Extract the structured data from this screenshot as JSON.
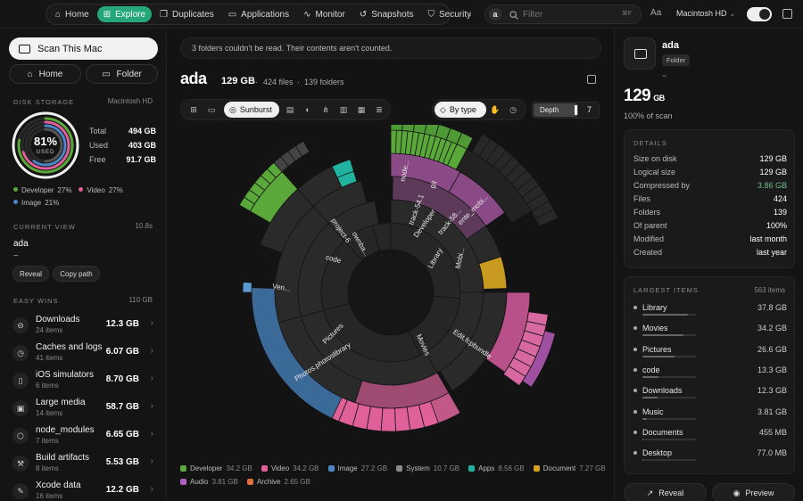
{
  "nav": {
    "tabs": [
      {
        "label": "Home",
        "icon": "home-icon"
      },
      {
        "label": "Explore",
        "icon": "compass-icon",
        "active": true
      },
      {
        "label": "Duplicates",
        "icon": "copy-icon"
      },
      {
        "label": "Applications",
        "icon": "monitor-icon"
      },
      {
        "label": "Monitor",
        "icon": "pulse-icon"
      },
      {
        "label": "Snapshots",
        "icon": "history-icon"
      },
      {
        "label": "Security",
        "icon": "shield-icon"
      }
    ],
    "search_chip": "a",
    "search_placeholder": "Filter",
    "search_shortcut": "⌘F",
    "volume": "Macintosh HD"
  },
  "left": {
    "scan_label": "Scan This Mac",
    "home_label": "Home",
    "folder_label": "Folder",
    "disk_storage_label": "DISK STORAGE",
    "disk_name": "Macintosh HD",
    "used_percent": "81%",
    "used_label": "USED",
    "used_fraction": 0.81,
    "stats": [
      {
        "k": "Total",
        "v": "494 GB"
      },
      {
        "k": "Used",
        "v": "403 GB"
      },
      {
        "k": "Free",
        "v": "91.7 GB"
      }
    ],
    "categories": [
      {
        "name": "Developer",
        "pct": "27%",
        "color": "#5aa83a"
      },
      {
        "name": "Video",
        "pct": "27%",
        "color": "#e0609a"
      },
      {
        "name": "Image",
        "pct": "21%",
        "color": "#4a86c8"
      }
    ],
    "current_view_label": "CURRENT VIEW",
    "current_view_time": "10.8s",
    "current_name": "ada",
    "current_path": "~",
    "reveal_label": "Reveal",
    "copy_path_label": "Copy path",
    "easy_wins_label": "EASY WINS",
    "easy_wins_total": "110 GB",
    "wins": [
      {
        "name": "Downloads",
        "sub": "24 items",
        "size": "12.3 GB",
        "icon": "download-icon",
        "glyph": "⊖"
      },
      {
        "name": "Caches and logs",
        "sub": "41 items",
        "size": "6.07 GB",
        "icon": "clock-icon",
        "glyph": "◷"
      },
      {
        "name": "iOS simulators",
        "sub": "6 items",
        "size": "8.70 GB",
        "icon": "phone-icon",
        "glyph": "▯"
      },
      {
        "name": "Large media",
        "sub": "14 items",
        "size": "58.7 GB",
        "icon": "media-icon",
        "glyph": "▣"
      },
      {
        "name": "node_modules",
        "sub": "7 items",
        "size": "6.65 GB",
        "icon": "package-icon",
        "glyph": "⬡"
      },
      {
        "name": "Build artifacts",
        "sub": "8 items",
        "size": "5.53 GB",
        "icon": "hammer-icon",
        "glyph": "⚒"
      },
      {
        "name": "Xcode data",
        "sub": "16 items",
        "size": "12.2 GB",
        "icon": "wrench-icon",
        "glyph": "✎"
      }
    ]
  },
  "center": {
    "banner": "3 folders couldn't be read. Their contents aren't counted.",
    "title": "ada",
    "size": "129 GB",
    "files": "424 files",
    "folders": "139 folders",
    "sunburst_label": "Sunburst",
    "bytype_label": "By type",
    "depth_label": "Depth",
    "depth_value": "7",
    "ring_labels": [
      {
        "text": "Library"
      },
      {
        "text": "Movies"
      },
      {
        "text": "Pictures"
      },
      {
        "text": "code"
      },
      {
        "text": "Developer"
      },
      {
        "text": "Photos.photoslibrary"
      },
      {
        "text": "Edit.fcpbundle"
      },
      {
        "text": "Mobi..."
      },
      {
        "text": "project-6"
      },
      {
        "text": "ownba..."
      },
      {
        "text": "Ven..."
      },
      {
        "text": "node..."
      },
      {
        "text": "git"
      },
      {
        "text": "track-54.1"
      },
      {
        "text": "track-58..."
      },
      {
        "text": "ente_mobi..."
      }
    ],
    "legend": [
      {
        "name": "Developer",
        "size": "34.2 GB",
        "color": "#5aa83a"
      },
      {
        "name": "Video",
        "size": "34.2 GB",
        "color": "#e0609a"
      },
      {
        "name": "Image",
        "size": "27.2 GB",
        "color": "#4a86c8"
      },
      {
        "name": "System",
        "size": "10.7 GB",
        "color": "#8a8a8a"
      },
      {
        "name": "Apps",
        "size": "8.56 GB",
        "color": "#22b3a0"
      },
      {
        "name": "Document",
        "size": "7.27 GB",
        "color": "#d8a020"
      },
      {
        "name": "Audio",
        "size": "3.81 GB",
        "color": "#b060c0"
      },
      {
        "name": "Archive",
        "size": "2.65 GB",
        "color": "#e07040"
      }
    ]
  },
  "right": {
    "name": "ada",
    "badge": "Folder",
    "path": "~",
    "big_size": "129",
    "big_unit": "GB",
    "scan_pct": "100% of scan",
    "details_label": "DETAILS",
    "details": [
      {
        "k": "Size on disk",
        "v": "129 GB"
      },
      {
        "k": "Logical size",
        "v": "129 GB"
      },
      {
        "k": "Compressed by",
        "v": "3.86 GB",
        "accent": true
      },
      {
        "k": "Files",
        "v": "424"
      },
      {
        "k": "Folders",
        "v": "139"
      },
      {
        "k": "Of parent",
        "v": "100%"
      },
      {
        "k": "Modified",
        "v": "last month"
      },
      {
        "k": "Created",
        "v": "last year"
      }
    ],
    "largest_label": "LARGEST ITEMS",
    "largest_count": "563 items",
    "largest": [
      {
        "name": "Library",
        "size": "37.8 GB",
        "fraction": 0.85
      },
      {
        "name": "Movies",
        "size": "34.2 GB",
        "fraction": 0.77
      },
      {
        "name": "Pictures",
        "size": "26.6 GB",
        "fraction": 0.6
      },
      {
        "name": "code",
        "size": "13.3 GB",
        "fraction": 0.3
      },
      {
        "name": "Downloads",
        "size": "12.3 GB",
        "fraction": 0.28
      },
      {
        "name": "Music",
        "size": "3.81 GB",
        "fraction": 0.09
      },
      {
        "name": "Documents",
        "size": "455 MB",
        "fraction": 0.02
      },
      {
        "name": "Desktop",
        "size": "77.0 MB",
        "fraction": 0.01
      }
    ],
    "reveal_label": "Reveal",
    "preview_label": "Preview"
  },
  "colors": {
    "accent": "#25a77a",
    "compressed": "#6cc38c"
  }
}
